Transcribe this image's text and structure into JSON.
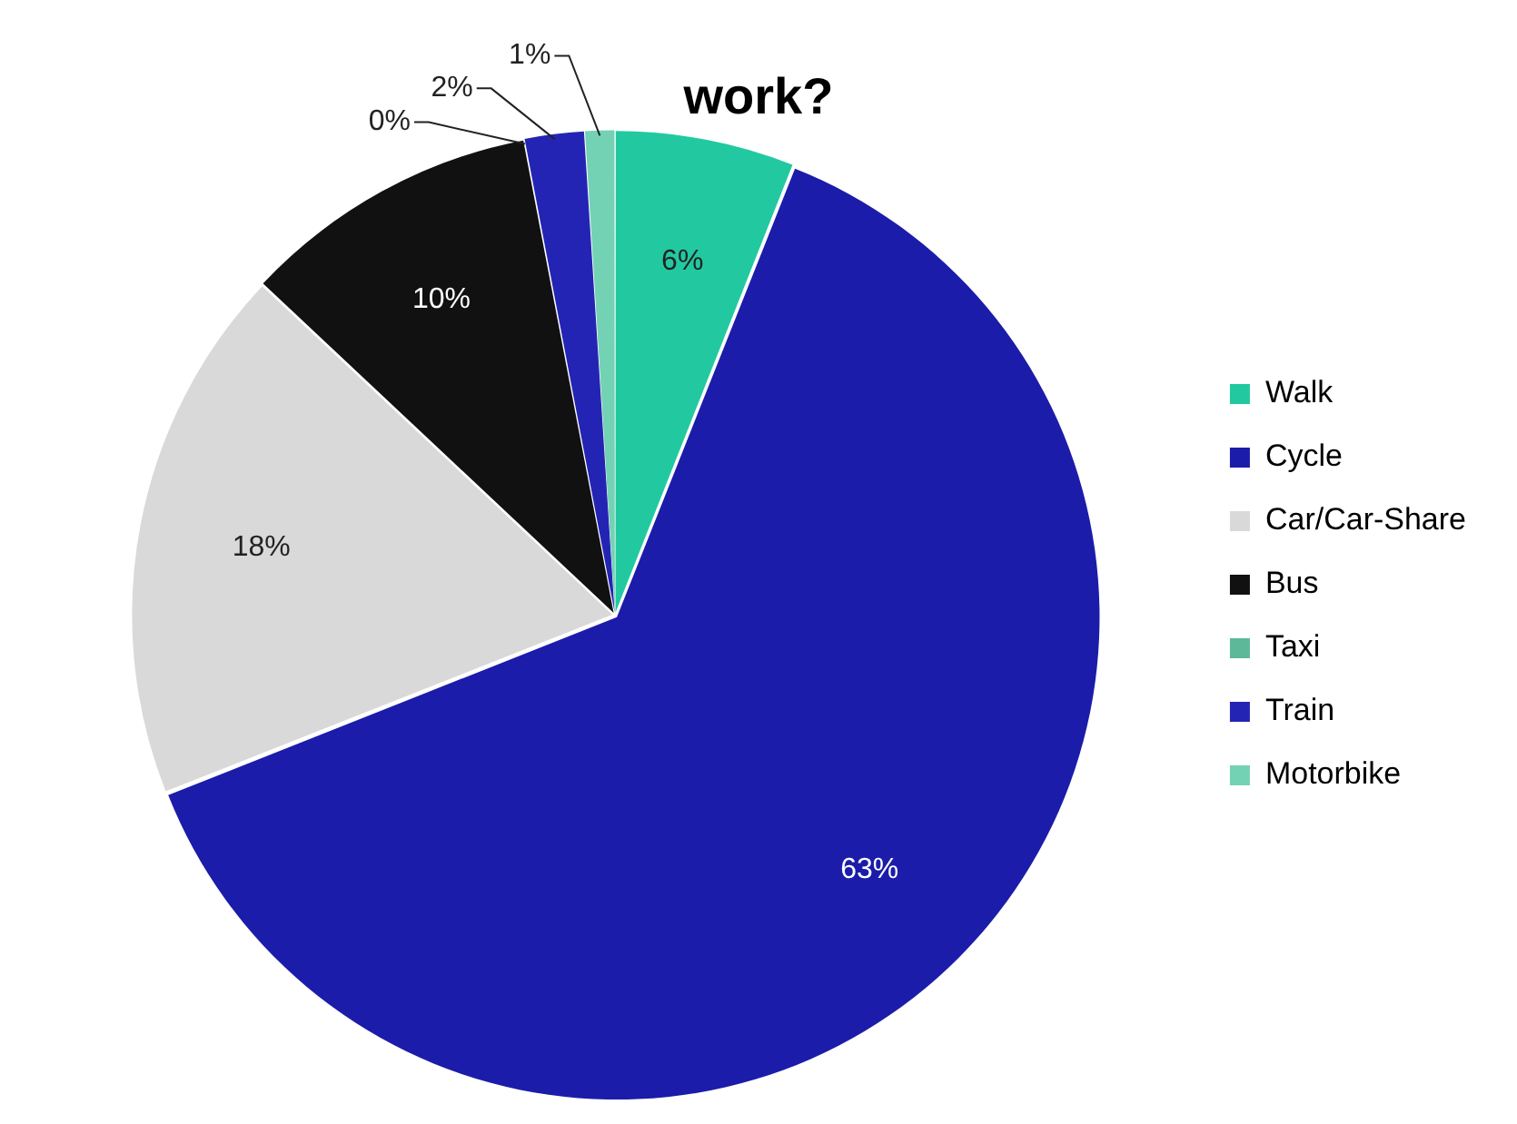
{
  "chart_data": {
    "type": "pie",
    "title": "work?",
    "categories": [
      "Walk",
      "Cycle",
      "Car/Car-Share",
      "Bus",
      "Taxi",
      "Train",
      "Motorbike"
    ],
    "values": [
      6,
      63,
      18,
      10,
      0,
      2,
      1
    ],
    "colors": [
      "#22c9a0",
      "#1c1caa",
      "#d9d9d9",
      "#111111",
      "#5cb898",
      "#2424b4",
      "#74d2b4"
    ],
    "value_labels": [
      "6%",
      "63%",
      "18%",
      "10%",
      "0%",
      "2%",
      "1%"
    ],
    "legend": "right"
  }
}
